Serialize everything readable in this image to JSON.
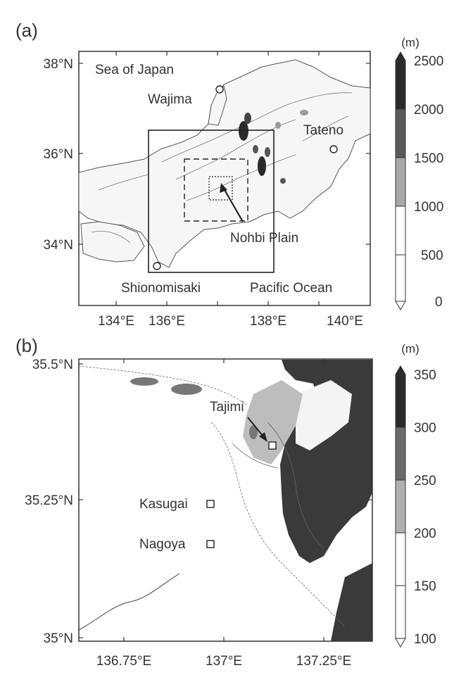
{
  "panel_a": {
    "label": "(a)",
    "lat_ticks": [
      "38°N",
      "36°N",
      "34°N"
    ],
    "lon_ticks": [
      "134°E",
      "136°E",
      "138°E",
      "140°E"
    ],
    "places": {
      "sea_of_japan": "Sea of Japan",
      "wajima": "Wajima",
      "tateno": "Tateno",
      "nohbi_plain": "Nohbi Plain",
      "shionomisaki": "Shionomisaki",
      "pacific_ocean": "Pacific Ocean"
    },
    "colorbar": {
      "unit": "(m)",
      "ticks": [
        "2500",
        "2000",
        "1500",
        "1000",
        "500",
        "0"
      ],
      "colors": [
        "#2a2a2a",
        "#5a5a5a",
        "#a8a8a8",
        "#ffffff",
        "#ffffff"
      ]
    }
  },
  "panel_b": {
    "label": "(b)",
    "lat_ticks": [
      "35.5°N",
      "35.25°N",
      "35°N"
    ],
    "lon_ticks": [
      "136.75°E",
      "137°E",
      "137.25°E"
    ],
    "places": {
      "tajimi": "Tajimi",
      "kasugai": "Kasugai",
      "nagoya": "Nagoya"
    },
    "colorbar": {
      "unit": "(m)",
      "ticks": [
        "350",
        "300",
        "250",
        "200",
        "150",
        "100"
      ],
      "colors": [
        "#2a2a2a",
        "#6a6a6a",
        "#b0b0b0",
        "#ffffff",
        "#ffffff"
      ]
    }
  }
}
